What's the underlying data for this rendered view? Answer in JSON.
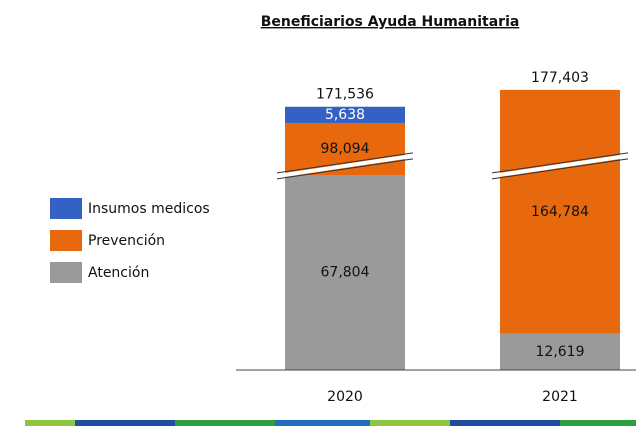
{
  "chart_data": {
    "type": "stacked-bar",
    "title": "Beneficiarios Ayuda Humanitaria",
    "categories": [
      "2020",
      "2021"
    ],
    "series": [
      {
        "name": "Atención",
        "color": "#9a9a9a",
        "values": [
          67804,
          12619
        ],
        "value_labels": [
          "67,804",
          "12,619"
        ]
      },
      {
        "name": "Prevención",
        "color": "#e8680e",
        "values": [
          98094,
          164784
        ],
        "value_labels": [
          "98,094",
          "164,784"
        ]
      },
      {
        "name": "Insumos medicos",
        "color": "#3361c4",
        "values": [
          5638,
          null
        ],
        "value_labels": [
          "5,638",
          null
        ]
      }
    ],
    "totals": [
      171536,
      177403
    ],
    "total_labels": [
      "171,536",
      "177,403"
    ],
    "legend": "left"
  }
}
